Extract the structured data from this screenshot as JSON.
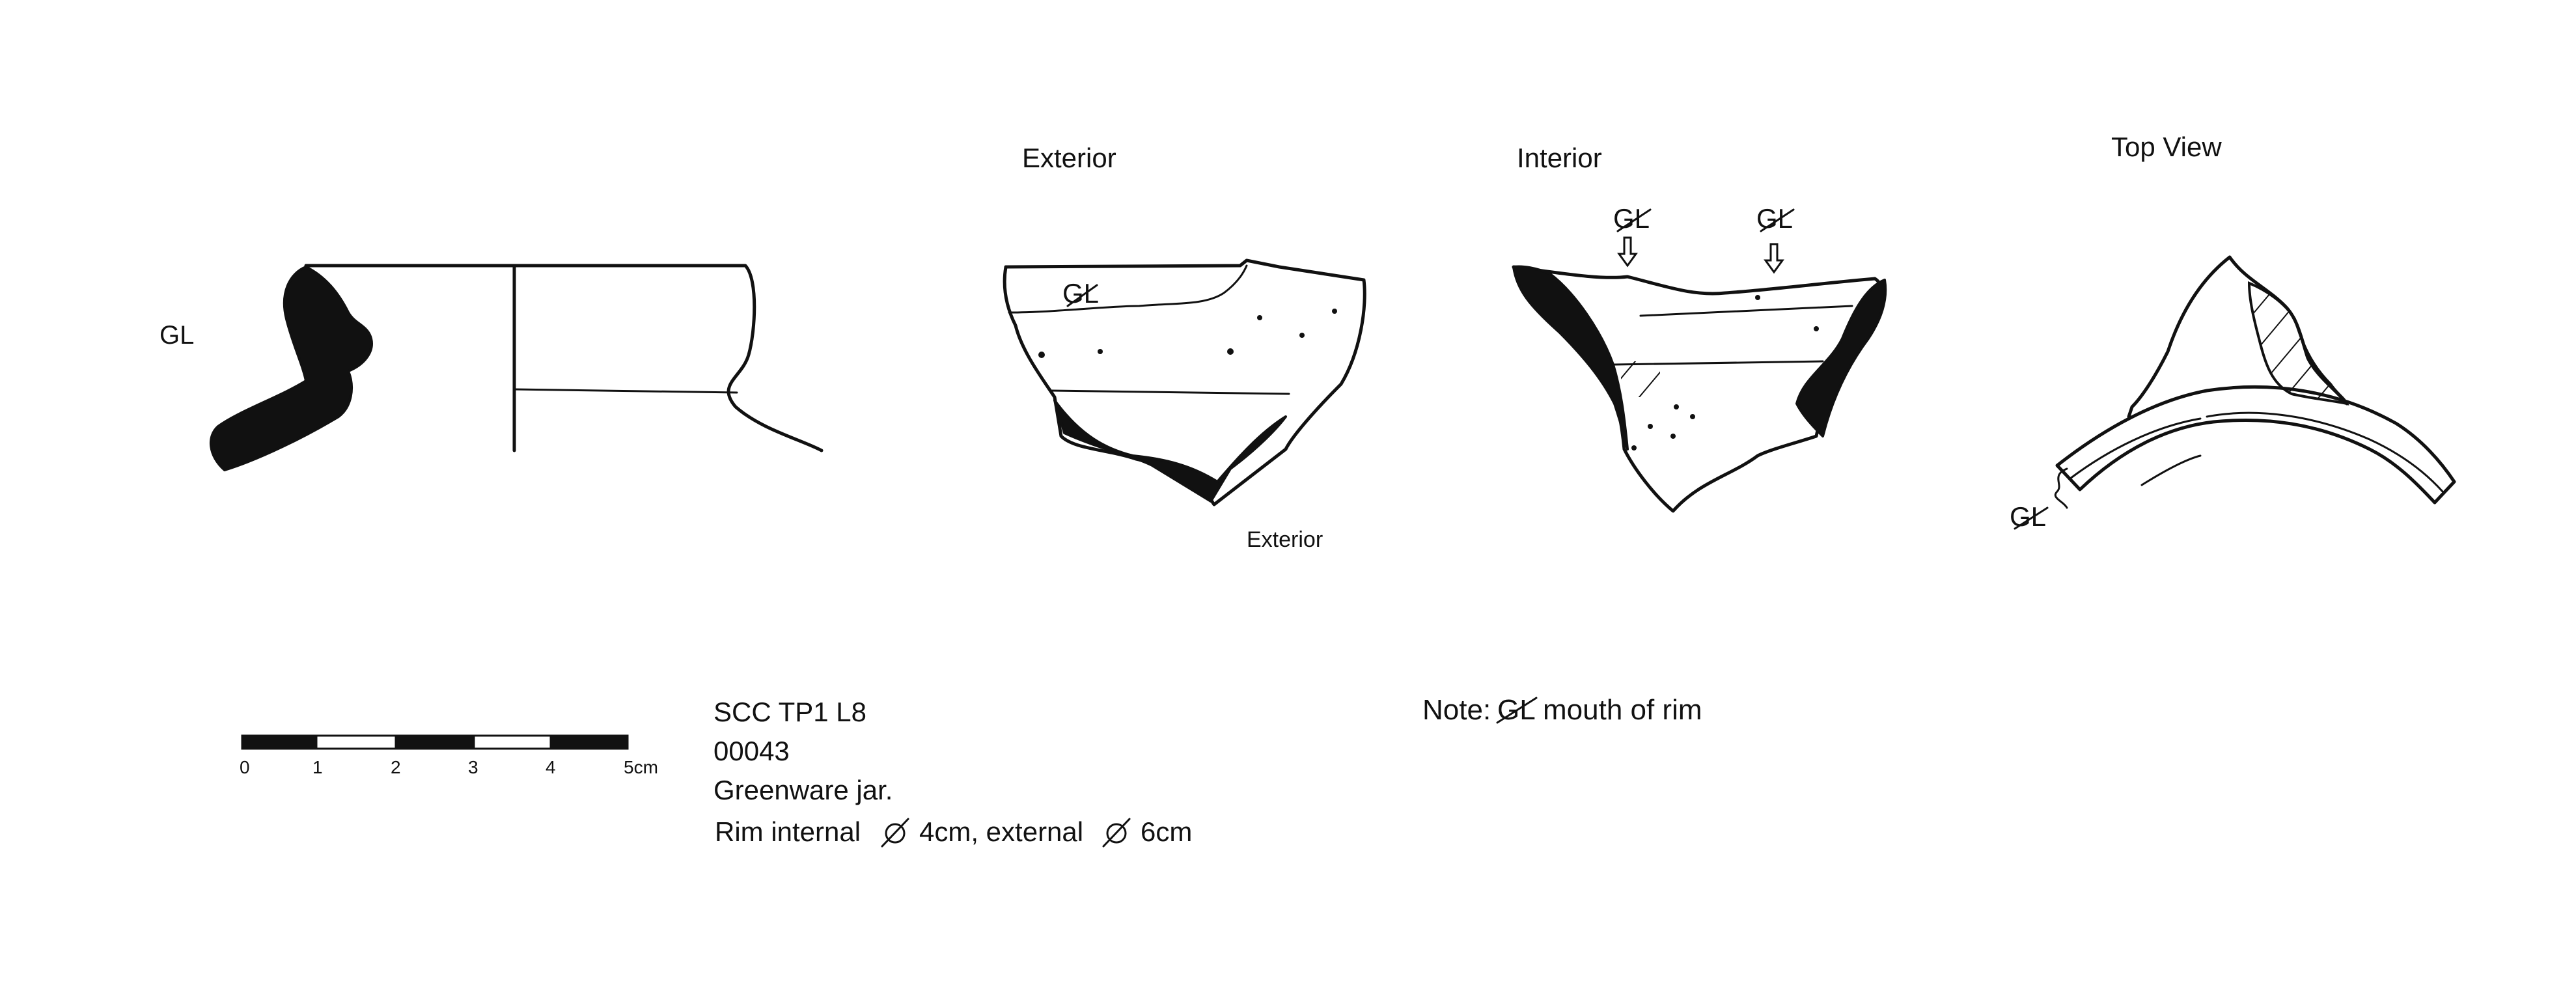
{
  "views": {
    "profile": {
      "label": "GL"
    },
    "exterior": {
      "title": "Exterior",
      "sherd_mark": "GL",
      "caption": "Exterior"
    },
    "interior": {
      "title": "Interior",
      "mark_left": "GL",
      "mark_right": "GL"
    },
    "top": {
      "title": "Top View",
      "mark": "GL"
    }
  },
  "scale_bar": {
    "ticks": [
      "0",
      "1",
      "2",
      "3",
      "4",
      "5cm"
    ]
  },
  "catalog": {
    "site": "SCC TP1 L8",
    "number": "00043",
    "description": "Greenware jar.",
    "rim_internal_label": "Rim internal",
    "rim_internal_value": "4cm, external",
    "rim_external_value": "6cm",
    "diameter_symbol": "diameter-symbol"
  },
  "note": {
    "prefix": "Note:",
    "mark": "GL",
    "text": "mouth of rim"
  },
  "colors": {
    "ink": "#111111",
    "paper": "#ffffff"
  }
}
